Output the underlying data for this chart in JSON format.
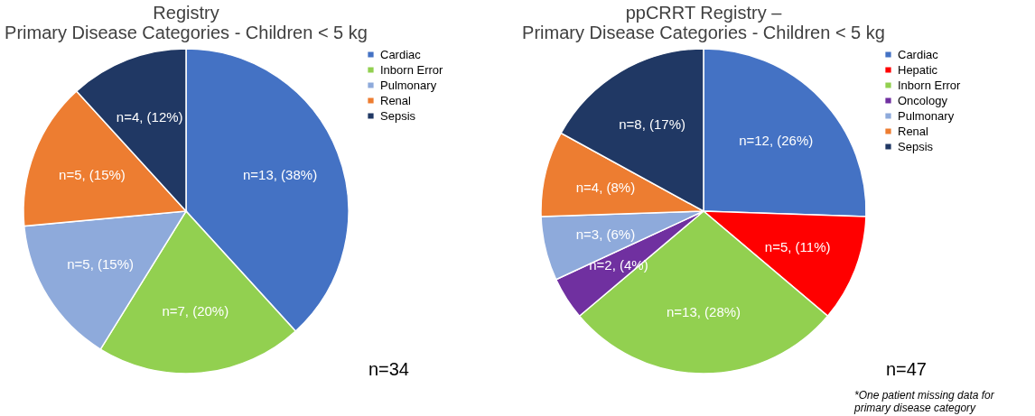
{
  "chart_data": [
    {
      "type": "pie",
      "title": [
        "Registry",
        "Primary Disease Categories - Children < 5 kg"
      ],
      "categories": [
        "Cardiac",
        "Inborn Error",
        "Pulmonary",
        "Renal",
        "Sepsis"
      ],
      "values": [
        13,
        7,
        5,
        5,
        4
      ],
      "value_labels": [
        "n=13, (38%)",
        "n=7, (20%)",
        "n=5, (15%)",
        "n=5, (15%)",
        "n=4, (12%)"
      ],
      "colors": [
        "#4472c4",
        "#92d050",
        "#8eaadb",
        "#ed7d31",
        "#203864"
      ],
      "legend": "right",
      "annotations": [
        "n=34"
      ]
    },
    {
      "type": "pie",
      "title": [
        "ppCRRT Registry –",
        "Primary Disease Categories - Children < 5 kg"
      ],
      "categories": [
        "Cardiac",
        "Hepatic",
        "Inborn Error",
        "Oncology",
        "Pulmonary",
        "Renal",
        "Sepsis"
      ],
      "values": [
        12,
        5,
        13,
        2,
        3,
        4,
        8
      ],
      "value_labels": [
        "n=12, (26%)",
        "n=5, (11%)",
        "n=13, (28%)",
        "n=2, (4%)",
        "n=3, (6%)",
        "n=4, (8%)",
        "n=8, (17%)"
      ],
      "colors": [
        "#4472c4",
        "#ff0000",
        "#92d050",
        "#7030a0",
        "#8eaadb",
        "#ed7d31",
        "#203864"
      ],
      "legend": "right",
      "annotations": [
        "n=47",
        "*One patient missing data for primary disease category"
      ]
    }
  ]
}
